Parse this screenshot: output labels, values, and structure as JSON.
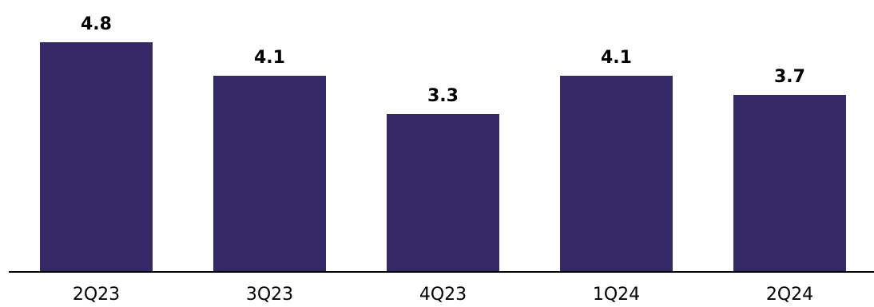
{
  "colors": {
    "bar": "#342966",
    "axis": "#000000",
    "background": "#ffffff"
  },
  "chart_data": {
    "type": "bar",
    "categories": [
      "2Q23",
      "3Q23",
      "4Q23",
      "1Q24",
      "2Q24"
    ],
    "values": [
      4.8,
      4.1,
      3.3,
      4.1,
      3.7
    ],
    "value_labels": [
      "4.8",
      "4.1",
      "3.3",
      "4.1",
      "3.7"
    ],
    "title": "",
    "xlabel": "",
    "ylabel": "",
    "ylim": [
      0,
      4.8
    ],
    "grid": false,
    "legend": "none"
  }
}
